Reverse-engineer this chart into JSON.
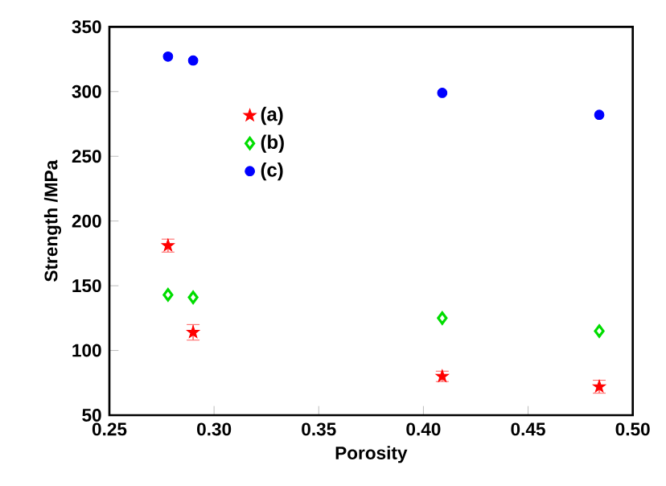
{
  "chart_data": {
    "type": "scatter",
    "xlabel": "Porosity",
    "ylabel": "Strength /MPa",
    "x": [
      0.278,
      0.29,
      0.409,
      0.484
    ],
    "series": [
      {
        "name": "(a)",
        "color": "#ff0000",
        "marker": "star",
        "values": [
          181,
          114,
          80,
          72
        ],
        "errors": [
          5,
          6,
          4,
          5
        ]
      },
      {
        "name": "(b)",
        "color": "#00dd00",
        "marker": "diamond",
        "values": [
          143,
          141,
          125,
          115
        ]
      },
      {
        "name": "(c)",
        "color": "#0000ff",
        "marker": "circle",
        "values": [
          327,
          324,
          299,
          282
        ]
      }
    ],
    "xlim": [
      0.25,
      0.5
    ],
    "xticks": [
      {
        "value": 0.25,
        "label": "0.25"
      },
      {
        "value": 0.3,
        "label": "0.30"
      },
      {
        "value": 0.35,
        "label": "0.35"
      },
      {
        "value": 0.4,
        "label": "0.40"
      },
      {
        "value": 0.45,
        "label": "0.45"
      },
      {
        "value": 0.5,
        "label": "0.50"
      }
    ],
    "ylim": [
      50,
      350
    ],
    "yticks": [
      50,
      100,
      150,
      200,
      250,
      300,
      350
    ],
    "legend": "center",
    "grid": false
  }
}
